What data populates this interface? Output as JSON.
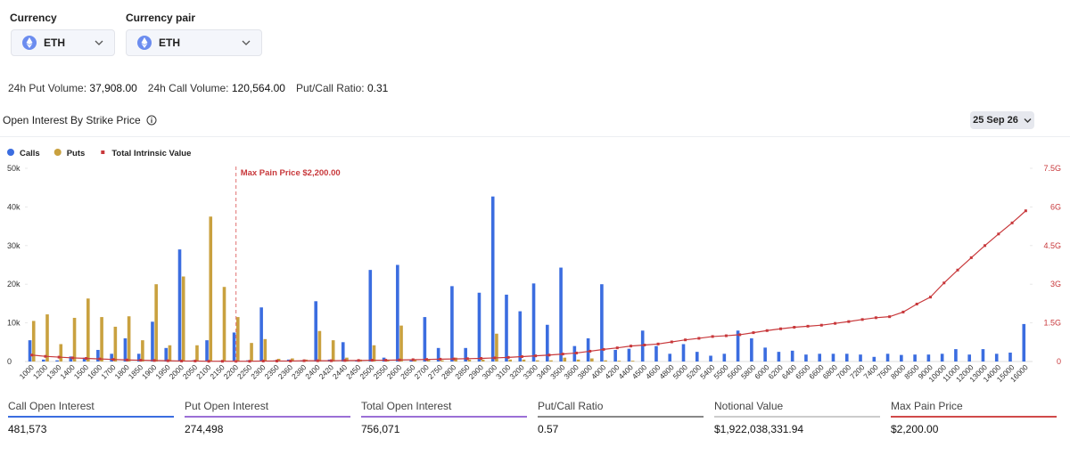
{
  "currency": {
    "label": "Currency",
    "value": "ETH"
  },
  "currency_pair": {
    "label": "Currency pair",
    "value": "ETH"
  },
  "stats": [
    {
      "label": "24h Put Volume:",
      "value": "37,908.00"
    },
    {
      "label": "24h Call Volume:",
      "value": "120,564.00"
    },
    {
      "label": "Put/Call Ratio:",
      "value": "0.31"
    }
  ],
  "section_title": "Open Interest By Strike Price",
  "date_selector": "25 Sep 26",
  "chart_data": {
    "type": "bar",
    "categories": [
      "1000",
      "1200",
      "1300",
      "1400",
      "1500",
      "1600",
      "1700",
      "1800",
      "1850",
      "1900",
      "1950",
      "2000",
      "2050",
      "2100",
      "2150",
      "2200",
      "2250",
      "2300",
      "2350",
      "2360",
      "2380",
      "2400",
      "2420",
      "2440",
      "2450",
      "2500",
      "2550",
      "2600",
      "2650",
      "2700",
      "2750",
      "2800",
      "2850",
      "2900",
      "3000",
      "3100",
      "3200",
      "3300",
      "3400",
      "3500",
      "3600",
      "3800",
      "4000",
      "4200",
      "4400",
      "4500",
      "4600",
      "4800",
      "5000",
      "5200",
      "5400",
      "5500",
      "5600",
      "5800",
      "6000",
      "6200",
      "6400",
      "6500",
      "6600",
      "6800",
      "7000",
      "7200",
      "7400",
      "7500",
      "8000",
      "8500",
      "9000",
      "10000",
      "11000",
      "12000",
      "13000",
      "14000",
      "15000",
      "16000"
    ],
    "series": [
      {
        "name": "Calls",
        "color": "#3b6de0",
        "values": [
          5500,
          500,
          300,
          1300,
          1000,
          3000,
          2000,
          6000,
          2000,
          10300,
          3500,
          29000,
          300,
          5500,
          200,
          7500,
          300,
          14000,
          300,
          500,
          300,
          15600,
          500,
          5000,
          300,
          23700,
          1000,
          25000,
          300,
          11500,
          3500,
          19500,
          3500,
          17800,
          42700,
          17300,
          13000,
          20200,
          9500,
          24300,
          4000,
          6000,
          20000,
          3000,
          3300,
          8000,
          4000,
          2000,
          4500,
          2500,
          1500,
          2000,
          8000,
          6000,
          3600,
          2500,
          2800,
          1800,
          2000,
          2000,
          2000,
          1800,
          1200,
          2000,
          1700,
          1800,
          1800,
          2000,
          3200,
          1800,
          3200,
          2000,
          2300,
          9700
        ]
      },
      {
        "name": "Puts",
        "color": "#c9a13f",
        "values": [
          10500,
          12200,
          4500,
          11300,
          16300,
          11500,
          9000,
          11700,
          5500,
          20000,
          4200,
          22000,
          4200,
          37500,
          19300,
          11500,
          4800,
          5800,
          700,
          800,
          500,
          7900,
          5500,
          1000,
          500,
          4200,
          500,
          9300,
          500,
          500,
          300,
          1000,
          500,
          500,
          7200,
          500,
          500,
          300,
          300,
          1000,
          500,
          800,
          300,
          200,
          200,
          0,
          0,
          0,
          0,
          0,
          0,
          0,
          0,
          0,
          0,
          0,
          0,
          0,
          0,
          0,
          0,
          0,
          0,
          0,
          0,
          0,
          0,
          0,
          0,
          0,
          0,
          0,
          0,
          0
        ]
      },
      {
        "name": "Total Intrinsic Value",
        "color": "#c8383b",
        "axis": "y2",
        "values": [
          0.25,
          0.2,
          0.17,
          0.14,
          0.12,
          0.1,
          0.08,
          0.06,
          0.05,
          0.04,
          0.03,
          0.02,
          0.02,
          0.01,
          0.01,
          0.01,
          0.01,
          0.02,
          0.02,
          0.02,
          0.03,
          0.03,
          0.03,
          0.04,
          0.04,
          0.05,
          0.05,
          0.06,
          0.07,
          0.08,
          0.09,
          0.1,
          0.11,
          0.12,
          0.14,
          0.16,
          0.19,
          0.22,
          0.25,
          0.29,
          0.33,
          0.4,
          0.47,
          0.53,
          0.6,
          0.64,
          0.68,
          0.76,
          0.84,
          0.9,
          0.97,
          1.0,
          1.04,
          1.12,
          1.2,
          1.27,
          1.33,
          1.37,
          1.41,
          1.48,
          1.55,
          1.63,
          1.7,
          1.74,
          1.92,
          2.23,
          2.5,
          3.05,
          3.55,
          4.03,
          4.5,
          4.95,
          5.38,
          5.85
        ]
      }
    ],
    "ylim": [
      0,
      50000
    ],
    "yticks": [
      0,
      {
        "value": 10000,
        "label": "10k"
      },
      {
        "value": 20000,
        "label": "20k"
      },
      {
        "value": 30000,
        "label": "30k"
      },
      {
        "value": 40000,
        "label": "40k"
      },
      {
        "value": 50000,
        "label": "50k"
      }
    ],
    "y2lim": [
      0,
      7.5
    ],
    "y2ticks": [
      0,
      {
        "value": 1.5,
        "label": "1.5G"
      },
      {
        "value": 3,
        "label": "3G"
      },
      {
        "value": 4.5,
        "label": "4.5G"
      },
      {
        "value": 6,
        "label": "6G"
      },
      {
        "value": 7.5,
        "label": "7.5G"
      }
    ],
    "annotation": {
      "text": "Max Pain Price $2,200.00",
      "category": "2200"
    },
    "legend": "top-left",
    "grid": false
  },
  "summary": [
    {
      "label": "Call Open Interest",
      "value": "481,573",
      "color": "#3b6de0"
    },
    {
      "label": "Put Open Interest",
      "value": "274,498",
      "color": "#9b6fd6"
    },
    {
      "label": "Total Open Interest",
      "value": "756,071",
      "color": "#9b6fd6"
    },
    {
      "label": "Put/Call Ratio",
      "value": "0.57",
      "color": "#888888"
    },
    {
      "label": "Notional Value",
      "value": "$1,922,038,331.94",
      "color": "#cccccc"
    },
    {
      "label": "Max Pain Price",
      "value": "$2,200.00",
      "color": "#d04a4a"
    }
  ]
}
